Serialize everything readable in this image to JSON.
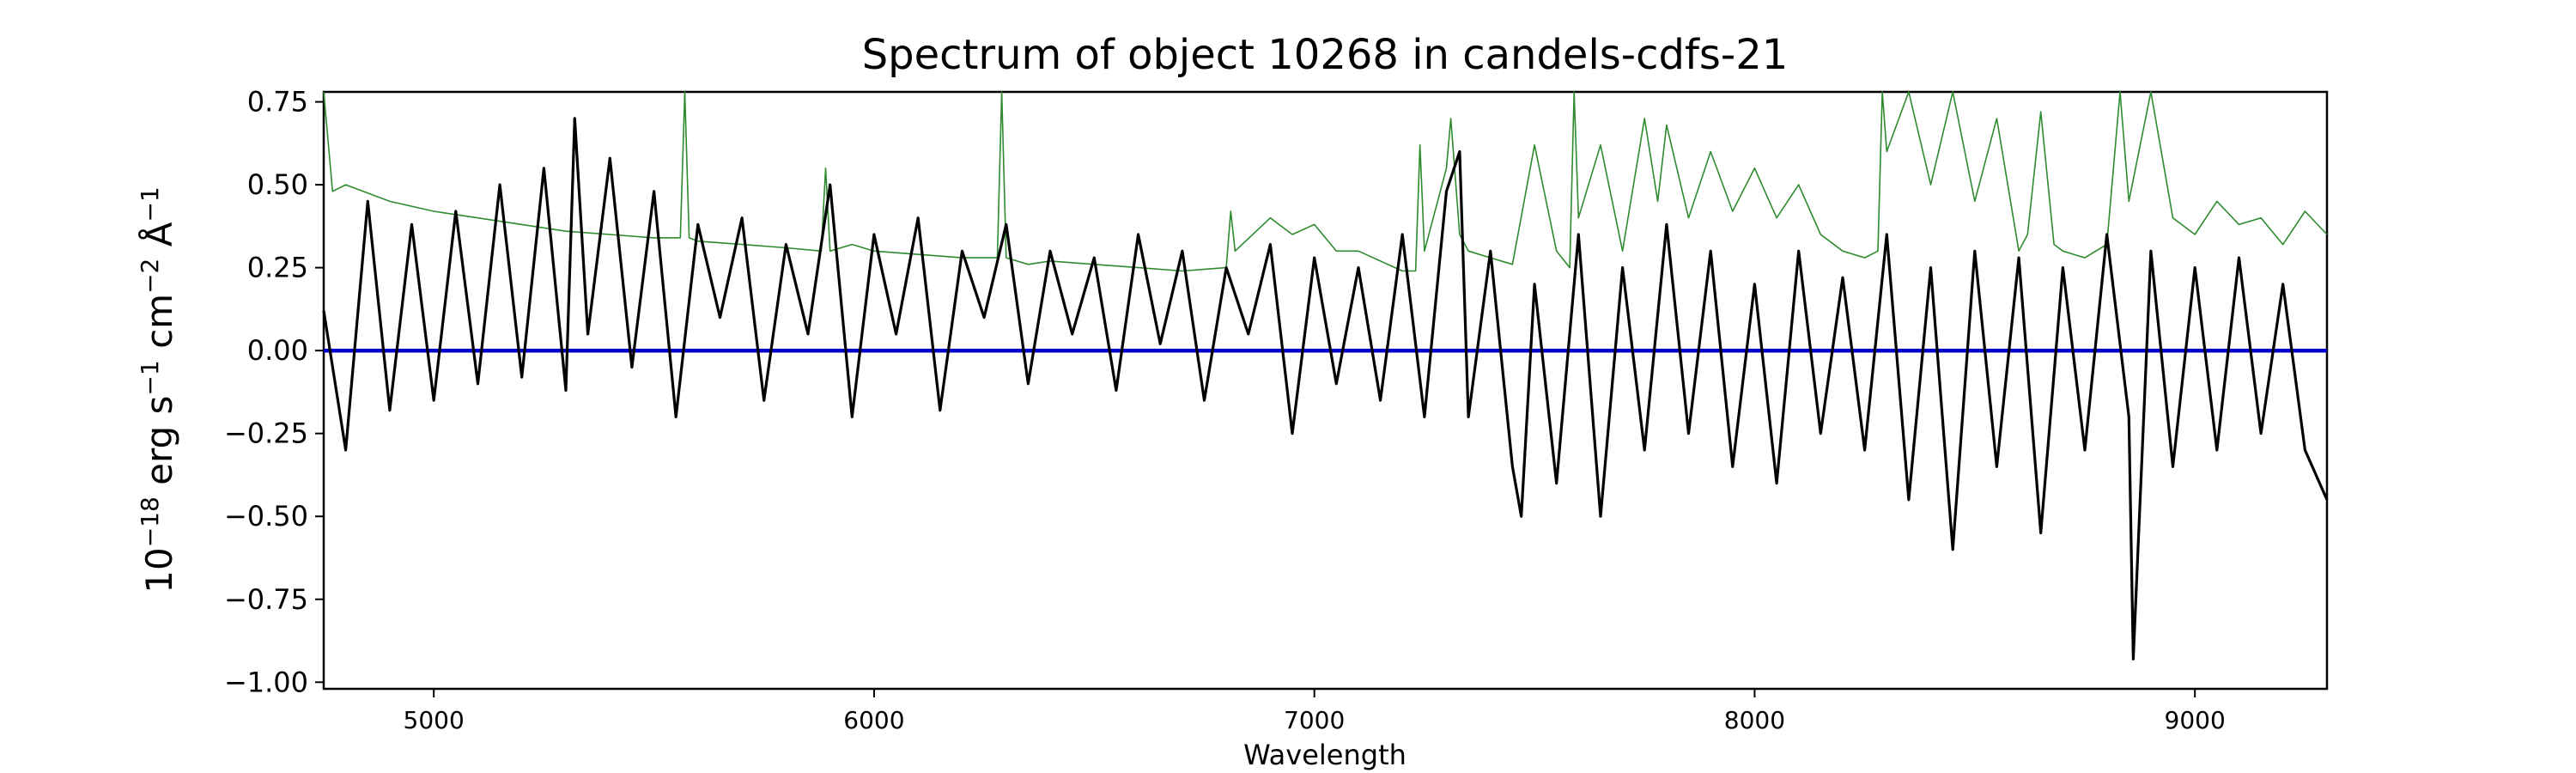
{
  "chart_data": {
    "type": "line",
    "title": "Spectrum of object 10268 in candels-cdfs-21",
    "xlabel": "Wavelength",
    "ylabel_parts": [
      "10",
      "−18",
      " erg s",
      "−1",
      " cm",
      "−2",
      " Å",
      "−1"
    ],
    "xlim": [
      4750,
      9300
    ],
    "ylim": [
      -1.02,
      0.78
    ],
    "xticks": [
      5000,
      6000,
      7000,
      8000,
      9000
    ],
    "yticks": [
      0.75,
      0.5,
      0.25,
      0.0,
      -0.25,
      -0.5,
      -0.75,
      -1.0
    ],
    "ytick_labels": [
      "0.75",
      "0.50",
      "0.25",
      "0.00",
      "−0.25",
      "−0.50",
      "−0.75",
      "−1.00"
    ],
    "grid": false,
    "series": [
      {
        "role": "flux",
        "color": "#000000",
        "x": [
          4750,
          4800,
          4850,
          4900,
          4950,
          5000,
          5050,
          5100,
          5150,
          5200,
          5250,
          5300,
          5320,
          5350,
          5400,
          5450,
          5500,
          5550,
          5600,
          5650,
          5700,
          5750,
          5800,
          5850,
          5900,
          5950,
          6000,
          6050,
          6100,
          6150,
          6200,
          6250,
          6300,
          6350,
          6400,
          6450,
          6500,
          6550,
          6600,
          6650,
          6700,
          6750,
          6800,
          6850,
          6900,
          6950,
          7000,
          7050,
          7100,
          7150,
          7200,
          7250,
          7300,
          7330,
          7350,
          7400,
          7450,
          7470,
          7500,
          7550,
          7600,
          7650,
          7700,
          7750,
          7800,
          7850,
          7900,
          7950,
          8000,
          8050,
          8100,
          8150,
          8200,
          8250,
          8300,
          8350,
          8400,
          8450,
          8500,
          8550,
          8600,
          8650,
          8700,
          8750,
          8800,
          8850,
          8860,
          8900,
          8950,
          9000,
          9050,
          9100,
          9150,
          9200,
          9250,
          9300
        ],
        "y": [
          0.12,
          -0.3,
          0.45,
          -0.18,
          0.38,
          -0.15,
          0.42,
          -0.1,
          0.5,
          -0.08,
          0.55,
          -0.12,
          0.7,
          0.05,
          0.58,
          -0.05,
          0.48,
          -0.2,
          0.38,
          0.1,
          0.4,
          -0.15,
          0.32,
          0.05,
          0.5,
          -0.2,
          0.35,
          0.05,
          0.4,
          -0.18,
          0.3,
          0.1,
          0.38,
          -0.1,
          0.3,
          0.05,
          0.28,
          -0.12,
          0.35,
          0.02,
          0.3,
          -0.15,
          0.25,
          0.05,
          0.32,
          -0.25,
          0.28,
          -0.1,
          0.25,
          -0.15,
          0.35,
          -0.2,
          0.48,
          0.6,
          -0.2,
          0.3,
          -0.35,
          -0.5,
          0.2,
          -0.4,
          0.35,
          -0.5,
          0.25,
          -0.3,
          0.38,
          -0.25,
          0.3,
          -0.35,
          0.2,
          -0.4,
          0.3,
          -0.25,
          0.22,
          -0.3,
          0.35,
          -0.45,
          0.25,
          -0.6,
          0.3,
          -0.35,
          0.28,
          -0.55,
          0.25,
          -0.3,
          0.35,
          -0.2,
          -0.93,
          0.3,
          -0.35,
          0.25,
          -0.3,
          0.28,
          -0.25,
          0.2,
          -0.3,
          -0.45
        ]
      },
      {
        "role": "error",
        "color": "#2e8b2e",
        "x": [
          4750,
          4770,
          4800,
          4900,
          5000,
          5100,
          5200,
          5300,
          5400,
          5500,
          5560,
          5570,
          5580,
          5600,
          5700,
          5800,
          5880,
          5890,
          5900,
          5950,
          6000,
          6100,
          6200,
          6280,
          6290,
          6300,
          6350,
          6400,
          6500,
          6600,
          6700,
          6800,
          6810,
          6820,
          6900,
          6950,
          7000,
          7050,
          7100,
          7200,
          7230,
          7240,
          7250,
          7300,
          7310,
          7330,
          7350,
          7400,
          7450,
          7500,
          7550,
          7580,
          7590,
          7600,
          7650,
          7700,
          7750,
          7780,
          7800,
          7850,
          7900,
          7950,
          8000,
          8050,
          8100,
          8150,
          8200,
          8250,
          8280,
          8290,
          8300,
          8350,
          8400,
          8450,
          8500,
          8550,
          8600,
          8620,
          8650,
          8680,
          8700,
          8750,
          8800,
          8830,
          8850,
          8900,
          8950,
          9000,
          9050,
          9100,
          9150,
          9200,
          9250,
          9300
        ],
        "y": [
          0.78,
          0.48,
          0.5,
          0.45,
          0.42,
          0.4,
          0.38,
          0.36,
          0.35,
          0.34,
          0.34,
          0.78,
          0.34,
          0.33,
          0.32,
          0.31,
          0.3,
          0.55,
          0.3,
          0.32,
          0.3,
          0.29,
          0.28,
          0.28,
          0.78,
          0.28,
          0.26,
          0.27,
          0.26,
          0.25,
          0.24,
          0.25,
          0.42,
          0.3,
          0.4,
          0.35,
          0.38,
          0.3,
          0.3,
          0.24,
          0.24,
          0.62,
          0.3,
          0.55,
          0.7,
          0.35,
          0.3,
          0.28,
          0.26,
          0.62,
          0.3,
          0.25,
          0.78,
          0.4,
          0.62,
          0.3,
          0.7,
          0.45,
          0.68,
          0.4,
          0.6,
          0.42,
          0.55,
          0.4,
          0.5,
          0.35,
          0.3,
          0.28,
          0.3,
          0.78,
          0.6,
          0.78,
          0.5,
          0.78,
          0.45,
          0.7,
          0.3,
          0.35,
          0.72,
          0.32,
          0.3,
          0.28,
          0.32,
          0.78,
          0.45,
          0.78,
          0.4,
          0.35,
          0.45,
          0.38,
          0.4,
          0.32,
          0.42,
          0.35
        ]
      },
      {
        "role": "model",
        "color": "#0000cc",
        "x": [
          4750,
          9300
        ],
        "y": [
          0.0,
          0.0
        ]
      }
    ]
  }
}
